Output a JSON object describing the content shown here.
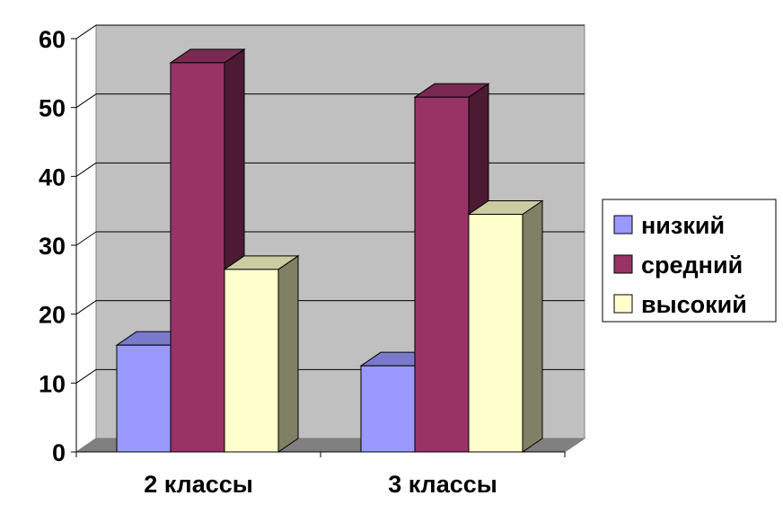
{
  "chart_data": {
    "type": "bar",
    "categories": [
      "2 классы",
      "3 классы"
    ],
    "series": [
      {
        "name": "низкий",
        "values": [
          15.5,
          12.5
        ],
        "color": "#9999FF"
      },
      {
        "name": "средний",
        "values": [
          56.5,
          51.5
        ],
        "color": "#993366"
      },
      {
        "name": "высокий",
        "values": [
          26.5,
          34.5
        ],
        "color": "#FFFFCC"
      }
    ],
    "ylim": [
      0,
      60
    ],
    "yticks": [
      "0",
      "10",
      "20",
      "30",
      "40",
      "50",
      "60"
    ],
    "grid": true,
    "legend_position": "right",
    "plot_background": "#C0C0C0"
  }
}
